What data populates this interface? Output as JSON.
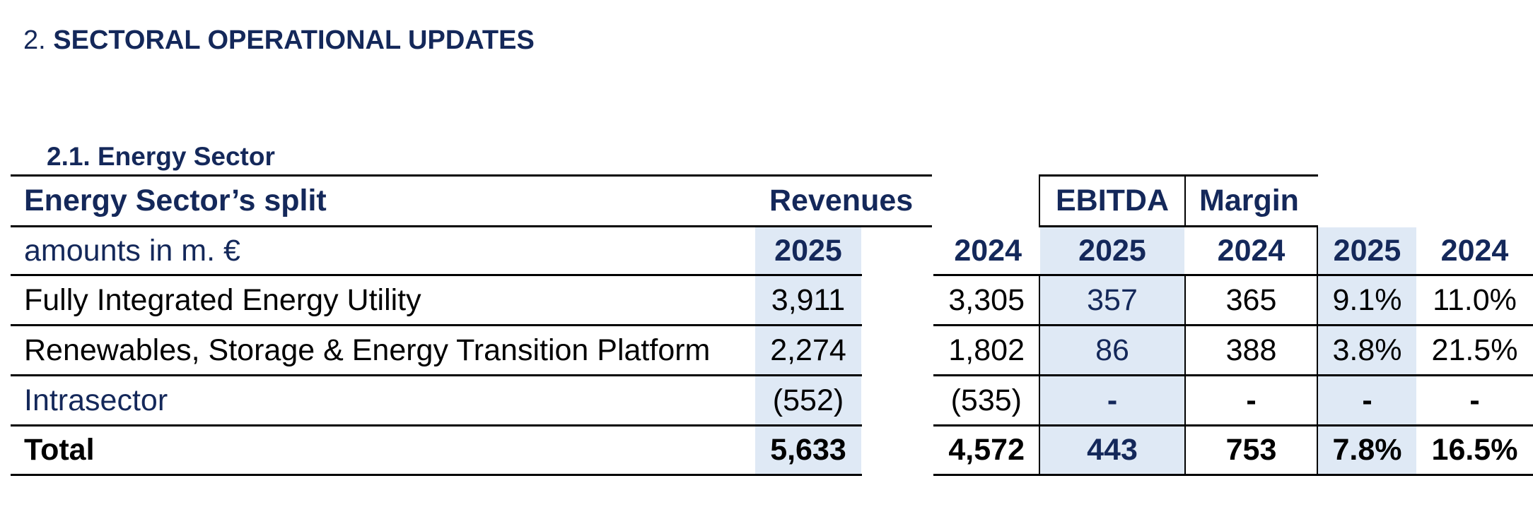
{
  "heading": {
    "number": "2.",
    "text": "SECTORAL OPERATIONAL UPDATES"
  },
  "subheading": "2.1. Energy Sector",
  "table": {
    "header": {
      "split_label": "Energy Sector’s split",
      "revenues_label": "Revenues",
      "ebitda_label": "EBITDA",
      "margin_label": "Margin"
    },
    "units_label": "amounts in m. €",
    "years": [
      "2025",
      "2024",
      "2025",
      "2024",
      "2025",
      "2024"
    ],
    "rows": [
      {
        "label": "Fully Integrated Energy Utility",
        "rev_2025": "3,911",
        "rev_2024": "3,305",
        "ebitda_2025": "357",
        "ebitda_2024": "365",
        "margin_2025": "9.1%",
        "margin_2024": "11.0%"
      },
      {
        "label": "Renewables, Storage & Energy Transition Platform",
        "rev_2025": "2,274",
        "rev_2024": "1,802",
        "ebitda_2025": "86",
        "ebitda_2024": "388",
        "margin_2025": "3.8%",
        "margin_2024": "21.5%"
      },
      {
        "label": "Intrasector",
        "rev_2025": "(552)",
        "rev_2024": "(535)",
        "ebitda_2025": "-",
        "ebitda_2024": "-",
        "margin_2025": "-",
        "margin_2024": "-"
      },
      {
        "label": "Total",
        "rev_2025": "5,633",
        "rev_2024": "4,572",
        "ebitda_2025": "443",
        "ebitda_2024": "753",
        "margin_2025": "7.8%",
        "margin_2024": "16.5%"
      }
    ]
  }
}
